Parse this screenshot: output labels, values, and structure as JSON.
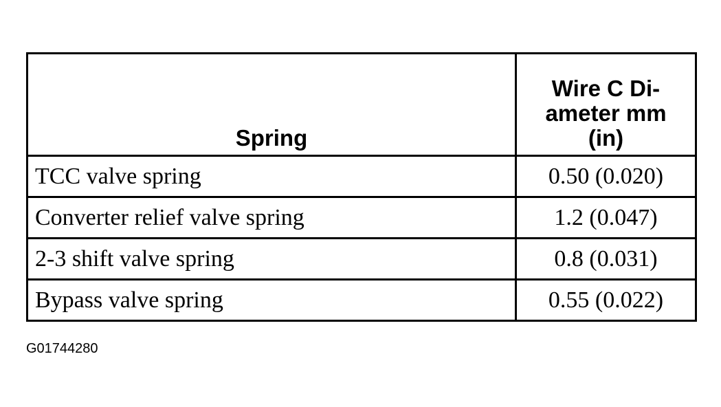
{
  "table": {
    "header": {
      "spring": "Spring",
      "diameter": [
        "Wire C Di-",
        "ameter mm",
        "(in)"
      ]
    },
    "rows": [
      [
        "TCC valve spring",
        "0.50 (0.020)"
      ],
      [
        "Converter relief valve spring",
        "1.2 (0.047)"
      ],
      [
        "2-3 shift valve spring",
        "0.8 (0.031)"
      ],
      [
        "Bypass valve spring",
        "0.55 (0.022)"
      ]
    ]
  },
  "figure_id": "G01744280"
}
